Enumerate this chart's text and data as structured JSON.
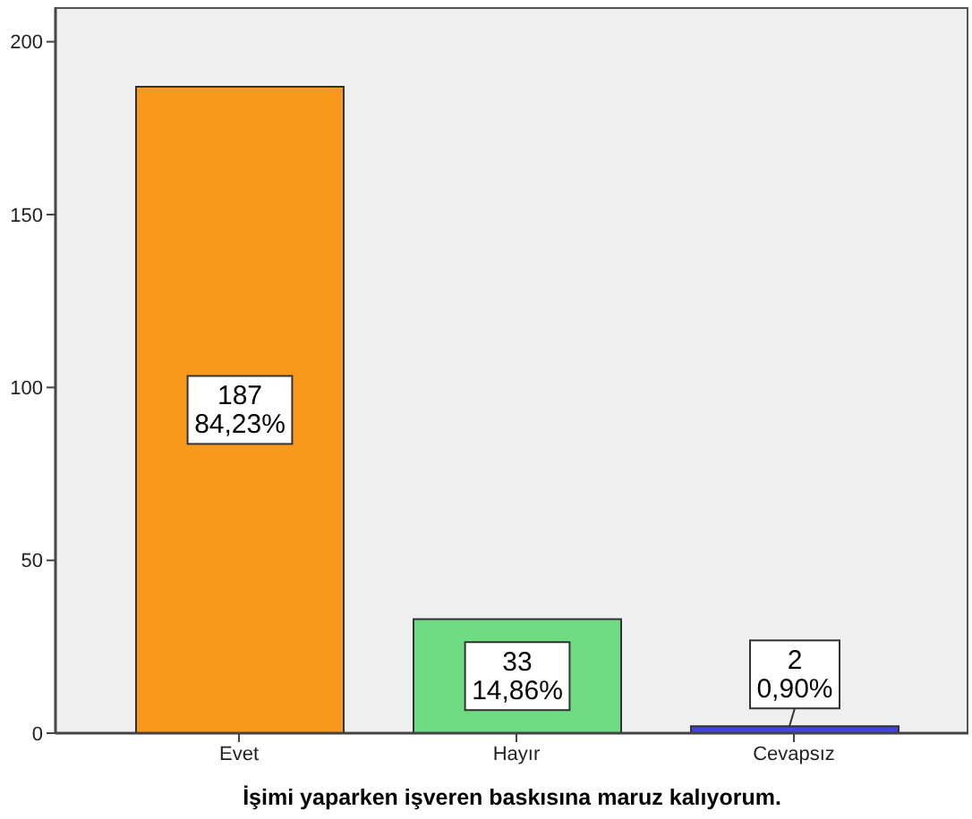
{
  "chart_data": {
    "type": "bar",
    "xlabel": "İşimi yaparken işveren baskısına maruz kalıyorum.",
    "categories": [
      "Evet",
      "Hayır",
      "Cevapsız"
    ],
    "values": [
      187,
      33,
      2
    ],
    "colors": [
      "#f8991d",
      "#6fdc84",
      "#4343e0"
    ],
    "value_labels": [
      "187\n84,23%",
      "33\n14,86%",
      "2\n0,90%"
    ],
    "ylim": [
      0,
      210
    ],
    "yticks": [
      0,
      50,
      100,
      150,
      200
    ]
  }
}
